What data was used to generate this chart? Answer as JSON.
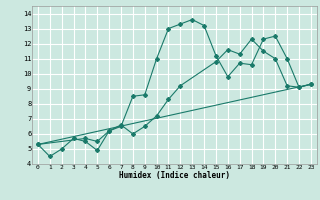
{
  "title": "",
  "xlabel": "Humidex (Indice chaleur)",
  "xlim": [
    -0.5,
    23.5
  ],
  "ylim": [
    4,
    14.5
  ],
  "yticks": [
    4,
    5,
    6,
    7,
    8,
    9,
    10,
    11,
    12,
    13,
    14
  ],
  "xticks": [
    0,
    1,
    2,
    3,
    4,
    5,
    6,
    7,
    8,
    9,
    10,
    11,
    12,
    13,
    14,
    15,
    16,
    17,
    18,
    19,
    20,
    21,
    22,
    23
  ],
  "bg_color": "#cce8e0",
  "grid_color": "#ffffff",
  "line_color": "#1a7a6a",
  "series1_x": [
    0,
    1,
    2,
    3,
    4,
    5,
    6,
    7,
    8,
    9,
    10,
    11,
    12,
    13,
    14,
    15,
    16,
    17,
    18,
    19,
    20,
    21,
    22,
    23
  ],
  "series1_y": [
    5.3,
    4.5,
    5.0,
    5.7,
    5.5,
    4.9,
    6.2,
    6.5,
    8.5,
    8.6,
    11.0,
    13.0,
    13.3,
    13.6,
    13.2,
    11.2,
    9.8,
    10.7,
    10.6,
    12.3,
    12.5,
    11.0,
    9.1,
    9.3
  ],
  "series2_x": [
    0,
    4,
    5,
    6,
    7,
    8,
    9,
    10,
    11,
    12,
    15,
    16,
    17,
    18,
    19,
    20,
    21,
    22,
    23
  ],
  "series2_y": [
    5.3,
    5.7,
    5.5,
    6.2,
    6.6,
    6.0,
    6.5,
    7.2,
    8.3,
    9.2,
    10.8,
    11.6,
    11.3,
    12.3,
    11.5,
    11.0,
    9.2,
    9.1,
    9.3
  ],
  "series3_x": [
    0,
    23
  ],
  "series3_y": [
    5.3,
    9.3
  ]
}
